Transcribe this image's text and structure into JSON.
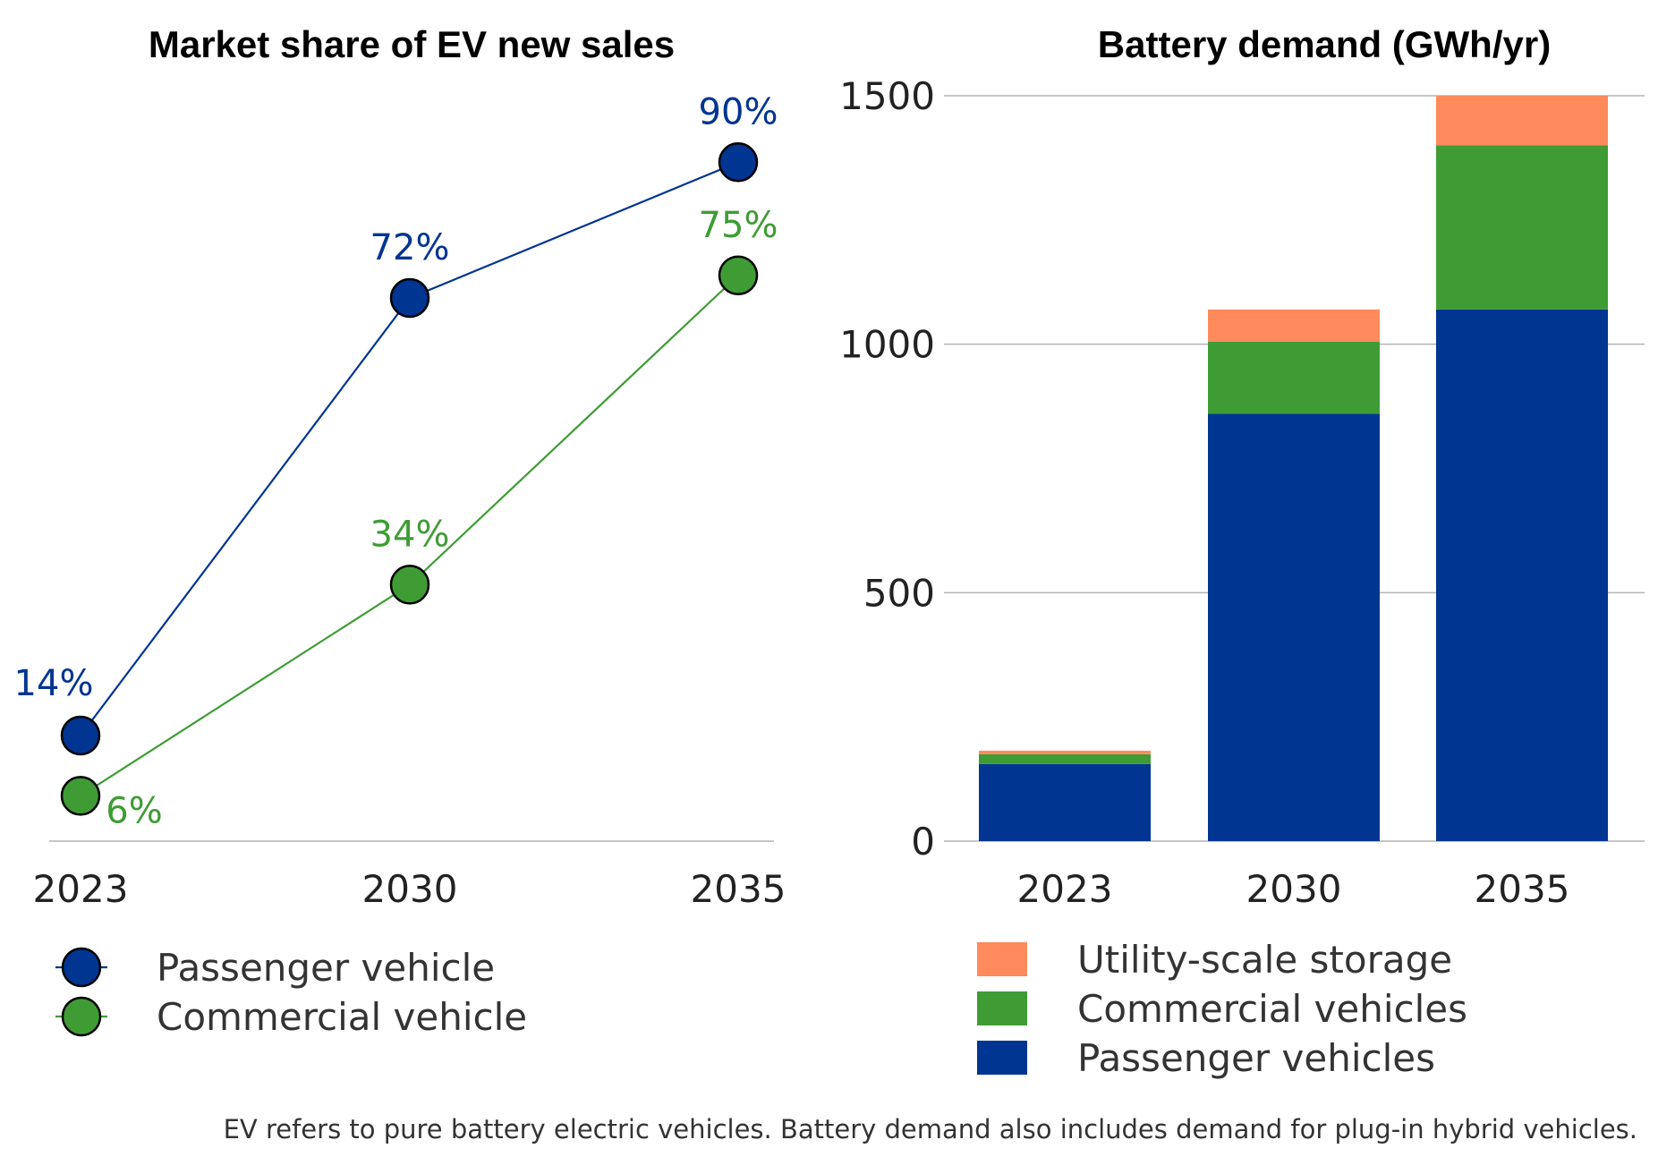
{
  "chart_data": [
    {
      "type": "line",
      "title": "Market share of EV new sales",
      "xlabel": "",
      "ylabel": "",
      "categories": [
        "2023",
        "2030",
        "2035"
      ],
      "ylim": [
        0,
        100
      ],
      "series": [
        {
          "name": "Passenger vehicle",
          "values": [
            14,
            72,
            90
          ],
          "labels": [
            "14%",
            "72%",
            "90%"
          ],
          "color": "#003591"
        },
        {
          "name": "Commercial vehicle",
          "values": [
            6,
            34,
            75
          ],
          "labels": [
            "6%",
            "34%",
            "75%"
          ],
          "color": "#3f9c35"
        }
      ],
      "legend": "bottom-left"
    },
    {
      "type": "bar",
      "stacked": true,
      "title": "Battery demand (GWh/yr)",
      "xlabel": "",
      "ylabel": "",
      "categories": [
        "2023",
        "2030",
        "2035"
      ],
      "ylim": [
        0,
        1500
      ],
      "yticks": [
        "0",
        "500",
        "1000",
        "1500"
      ],
      "grid": true,
      "series": [
        {
          "name": "Passenger vehicles",
          "values": [
            155,
            860,
            1070
          ],
          "color": "#003591"
        },
        {
          "name": "Commercial vehicles",
          "values": [
            20,
            145,
            330
          ],
          "color": "#3f9c35"
        },
        {
          "name": "Utility-scale storage",
          "values": [
            7,
            65,
            100
          ],
          "color": "#ff8a5b"
        }
      ],
      "legend_order": [
        "Utility-scale storage",
        "Commercial vehicles",
        "Passenger vehicles"
      ],
      "legend": "bottom"
    }
  ],
  "footnote": "EV refers to pure battery electric vehicles. Battery demand also includes demand for plug-in hybrid vehicles."
}
